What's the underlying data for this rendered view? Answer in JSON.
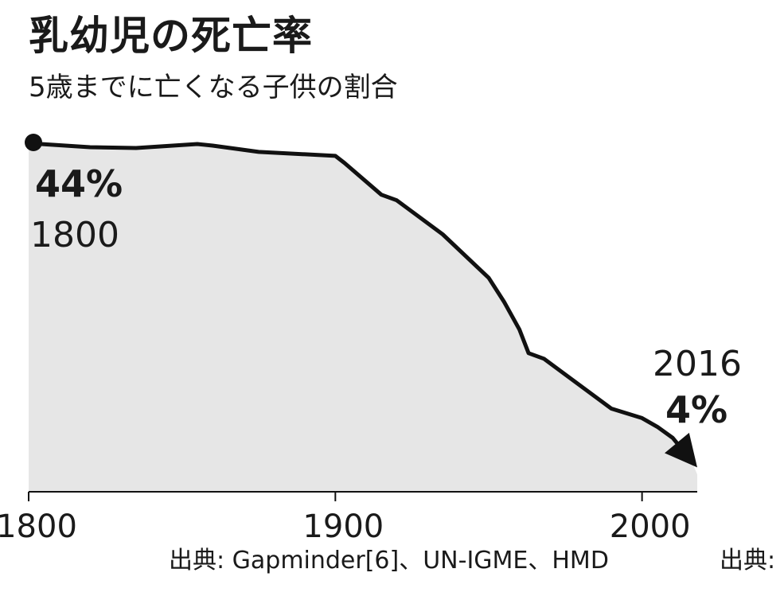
{
  "title": "乳幼児の死亡率",
  "subtitle": "5歳までに亡くなる子供の割合",
  "chart_data": {
    "type": "area",
    "x": [
      1800,
      1820,
      1835,
      1855,
      1860,
      1875,
      1900,
      1903,
      1915,
      1920,
      1935,
      1950,
      1955,
      1960,
      1963,
      1968,
      1975,
      1990,
      2000,
      2005,
      2010,
      2016
    ],
    "y": [
      44,
      43.5,
      43.4,
      43.9,
      43.7,
      42.9,
      42.4,
      41.5,
      37.5,
      36.8,
      32.5,
      27,
      24,
      20.5,
      17.5,
      16.8,
      14.8,
      10.5,
      9.3,
      8.2,
      6.8,
      4
    ],
    "xlim": [
      1800,
      2018
    ],
    "ylim": [
      0,
      44
    ],
    "xticks": [
      "1800",
      "1900",
      "2000"
    ],
    "grid": false,
    "legend": "none",
    "annotations": {
      "start": {
        "value": "44%",
        "year": "1800"
      },
      "end": {
        "value": "4%",
        "year": "2016"
      }
    },
    "colors": {
      "area_fill": "#e6e6e6",
      "line": "#111111",
      "axis": "#111111"
    }
  },
  "source": {
    "main": "出典: Gapminder[6]、UN-IGME、HMD",
    "cut": "出典:"
  }
}
